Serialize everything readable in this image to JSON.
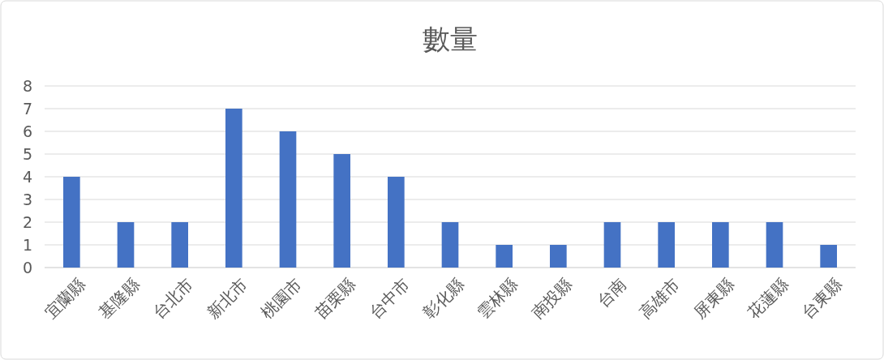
{
  "chart_data": {
    "type": "bar",
    "title": "數量",
    "categories": [
      "宜蘭縣",
      "基隆縣",
      "台北市",
      "新北市",
      "桃園市",
      "苗栗縣",
      "台中市",
      "彰化縣",
      "雲林縣",
      "南投縣",
      "台南",
      "高雄市",
      "屏東縣",
      "花蓮縣",
      "台東縣"
    ],
    "values": [
      4,
      2,
      2,
      7,
      6,
      5,
      4,
      2,
      1,
      1,
      2,
      2,
      2,
      2,
      1
    ],
    "color": "#4472c4",
    "ylim": [
      0,
      8
    ],
    "yticks": [
      0,
      1,
      2,
      3,
      4,
      5,
      6,
      7,
      8
    ],
    "grid": "y"
  }
}
